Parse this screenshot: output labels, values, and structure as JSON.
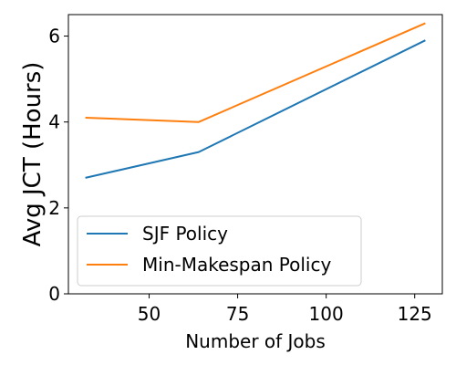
{
  "chart_data": {
    "type": "line",
    "title": "",
    "xlabel": "Number of Jobs",
    "ylabel": "Avg JCT (Hours)",
    "xlim": [
      27.2,
      132.8
    ],
    "ylim": [
      0,
      6.5
    ],
    "xticks": [
      50,
      75,
      100,
      125
    ],
    "yticks": [
      0,
      2,
      4,
      6
    ],
    "grid": false,
    "legend_position": "lower-left",
    "series": [
      {
        "name": "SJF Policy",
        "color": "#1f77b4",
        "x": [
          32,
          64,
          128
        ],
        "y": [
          2.7,
          3.3,
          5.9
        ]
      },
      {
        "name": "Min-Makespan Policy",
        "color": "#ff7f0e",
        "x": [
          32,
          64,
          128
        ],
        "y": [
          4.1,
          4.0,
          6.3
        ]
      }
    ]
  }
}
